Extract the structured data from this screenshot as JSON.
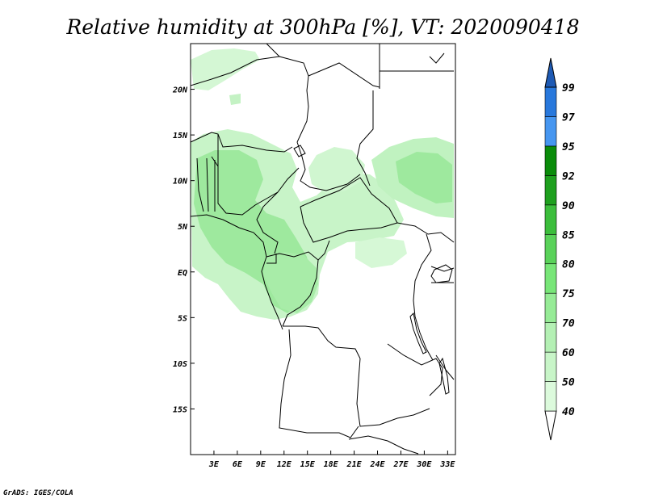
{
  "title": "Relative humidity at 300hPa [%], VT: 2020090418",
  "credit": "GrADS: IGES/COLA",
  "map": {
    "lon_range": [
      0,
      34
    ],
    "lat_range": [
      -20,
      25
    ],
    "lon_ticks": [
      "3E",
      "6E",
      "9E",
      "12E",
      "15E",
      "18E",
      "21E",
      "24E",
      "27E",
      "30E",
      "33E"
    ],
    "lat_ticks": [
      "20N",
      "15N",
      "10N",
      "5N",
      "EQ",
      "5S",
      "10S",
      "15S"
    ],
    "variable": "relative humidity",
    "level": "300hPa",
    "unit": "%"
  },
  "colorbar": {
    "levels": [
      "40",
      "50",
      "60",
      "70",
      "75",
      "80",
      "85",
      "90",
      "92",
      "95",
      "97",
      "99"
    ],
    "colors": [
      "#f0fff0",
      "#dcfadc",
      "#c8f5c8",
      "#b4f0b4",
      "#96eb96",
      "#78e678",
      "#5ad25a",
      "#3cbe3c",
      "#1ea01e",
      "#0a8c0a",
      "#4696f0",
      "#2878dc",
      "#1e5ab4"
    ]
  },
  "colors": {
    "light_green": "#ccf5cc",
    "mid_green": "#a8eca8",
    "green": "#8fe48f"
  }
}
